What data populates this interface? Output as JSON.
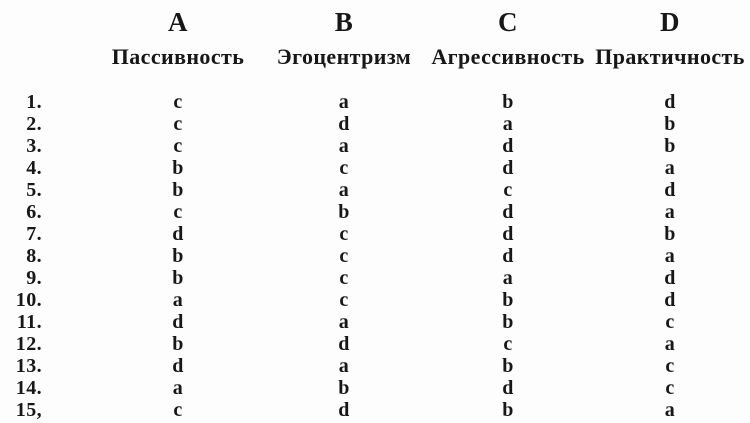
{
  "page": {
    "background_color": "#fdfdfd",
    "text_color": "#171717"
  },
  "table": {
    "column_letters": [
      "A",
      "B",
      "C",
      "D"
    ],
    "column_labels": [
      "Пассивность",
      "Эгоцентризм",
      "Агрессивность",
      "Практичность"
    ],
    "rows": [
      {
        "num": "1.",
        "values": [
          "c",
          "a",
          "b",
          "d"
        ]
      },
      {
        "num": "2.",
        "values": [
          "c",
          "d",
          "a",
          "b"
        ]
      },
      {
        "num": "3.",
        "values": [
          "c",
          "a",
          "d",
          "b"
        ]
      },
      {
        "num": "4.",
        "values": [
          "b",
          "c",
          "d",
          "a"
        ]
      },
      {
        "num": "5.",
        "values": [
          "b",
          "a",
          "c",
          "d"
        ]
      },
      {
        "num": "6.",
        "values": [
          "c",
          "b",
          "d",
          "a"
        ]
      },
      {
        "num": "7.",
        "values": [
          "d",
          "c",
          "d",
          "b"
        ]
      },
      {
        "num": "8.",
        "values": [
          "b",
          "c",
          "d",
          "a"
        ]
      },
      {
        "num": "9.",
        "values": [
          "b",
          "c",
          "a",
          "d"
        ]
      },
      {
        "num": "10.",
        "values": [
          "a",
          "c",
          "b",
          "d"
        ]
      },
      {
        "num": "11.",
        "values": [
          "d",
          "a",
          "b",
          "c"
        ]
      },
      {
        "num": "12.",
        "values": [
          "b",
          "d",
          "c",
          "a"
        ]
      },
      {
        "num": "13.",
        "values": [
          "d",
          "a",
          "b",
          "c"
        ]
      },
      {
        "num": "14.",
        "values": [
          "a",
          "b",
          "d",
          "c"
        ]
      },
      {
        "num": "15,",
        "values": [
          "c",
          "d",
          "b",
          "a"
        ]
      }
    ]
  }
}
